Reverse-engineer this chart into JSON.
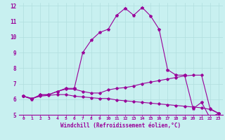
{
  "xlabel": "Windchill (Refroidissement éolien,°C)",
  "bg_color": "#c8f0f0",
  "grid_color": "#b0dede",
  "line_color": "#990099",
  "xlim": [
    -0.5,
    23.5
  ],
  "ylim": [
    5,
    12.2
  ],
  "xticks": [
    0,
    1,
    2,
    3,
    4,
    5,
    6,
    7,
    8,
    9,
    10,
    11,
    12,
    13,
    14,
    15,
    16,
    17,
    18,
    19,
    20,
    21,
    22,
    23
  ],
  "yticks": [
    5,
    6,
    7,
    8,
    9,
    10,
    11,
    12
  ],
  "line1_x": [
    0,
    1,
    2,
    3,
    4,
    5,
    6,
    7,
    8,
    9,
    10,
    11,
    12,
    13,
    14,
    15,
    16,
    17,
    18,
    19,
    20,
    21,
    22,
    23
  ],
  "line1_y": [
    6.2,
    6.0,
    6.3,
    6.3,
    6.5,
    6.7,
    6.7,
    9.0,
    9.8,
    10.3,
    10.5,
    11.4,
    11.85,
    11.4,
    11.9,
    11.35,
    10.5,
    7.9,
    7.55,
    7.55,
    5.4,
    5.8,
    4.8,
    5.1
  ],
  "line2_x": [
    0,
    1,
    2,
    3,
    4,
    5,
    6,
    7,
    8,
    9,
    10,
    11,
    12,
    13,
    14,
    15,
    16,
    17,
    18,
    19,
    20,
    21,
    22,
    23
  ],
  "line2_y": [
    6.2,
    6.05,
    6.25,
    6.3,
    6.5,
    6.65,
    6.65,
    6.5,
    6.4,
    6.4,
    6.6,
    6.7,
    6.75,
    6.85,
    7.0,
    7.1,
    7.2,
    7.3,
    7.4,
    7.5,
    7.55,
    7.55,
    5.4,
    5.1
  ],
  "line3_x": [
    0,
    1,
    2,
    3,
    4,
    5,
    6,
    7,
    8,
    9,
    10,
    11,
    12,
    13,
    14,
    15,
    16,
    17,
    18,
    19,
    20,
    21,
    22,
    23
  ],
  "line3_y": [
    6.2,
    6.05,
    6.2,
    6.25,
    6.3,
    6.3,
    6.2,
    6.15,
    6.1,
    6.05,
    6.05,
    5.95,
    5.9,
    5.85,
    5.8,
    5.75,
    5.7,
    5.65,
    5.6,
    5.55,
    5.5,
    5.45,
    5.35,
    5.1
  ]
}
